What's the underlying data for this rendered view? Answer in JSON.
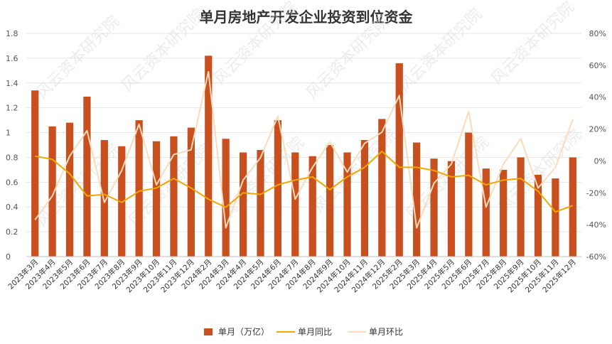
{
  "chart_data": {
    "type": "bar+line",
    "title": "单月房地产开发企业投资到位资金",
    "categories": [
      "2023年3月",
      "2023年4月",
      "2023年5月",
      "2023年6月",
      "2023年7月",
      "2023年8月",
      "2023年9月",
      "2023年10月",
      "2023年11月",
      "2023年12月",
      "2024年2月",
      "2024年3月",
      "2024年4月",
      "2024年5月",
      "2024年6月",
      "2024年7月",
      "2024年8月",
      "2024年9月",
      "2024年10月",
      "2024年11月",
      "2024年12月",
      "2025年2月",
      "2025年3月",
      "2025年4月",
      "2025年5月",
      "2025年6月",
      "2025年7月",
      "2025年8月",
      "2025年9月",
      "2025年10月",
      "2025年11月",
      "2025年12月"
    ],
    "series": [
      {
        "name": "单月（万亿）",
        "type": "bar",
        "axis": "left",
        "color": "#c8501e",
        "values": [
          1.34,
          1.05,
          1.08,
          1.29,
          0.94,
          0.89,
          1.1,
          0.93,
          0.97,
          1.04,
          1.62,
          0.95,
          0.84,
          0.86,
          1.1,
          0.84,
          0.81,
          0.9,
          0.84,
          0.94,
          1.11,
          1.56,
          0.92,
          0.79,
          0.77,
          1.0,
          0.71,
          0.7,
          0.8,
          0.66,
          0.63,
          0.8
        ]
      },
      {
        "name": "单月同比",
        "type": "line",
        "axis": "right",
        "color": "#f0a800",
        "values": [
          3,
          1,
          -8,
          -22,
          -21,
          -26,
          -19,
          -17,
          -11,
          -17,
          -24,
          -29,
          -20,
          -21,
          -15,
          -12,
          -10,
          -18,
          -10,
          -4,
          6,
          -4,
          -4,
          -6,
          -10,
          -9,
          -15,
          -12,
          -11,
          -19,
          -32,
          -28
        ]
      },
      {
        "name": "单月环比",
        "type": "line",
        "axis": "right",
        "color": "#f8dcbc",
        "values": [
          -37,
          -22,
          3,
          19,
          -26,
          -6,
          23,
          -15,
          4,
          7,
          56,
          -42,
          -12,
          2,
          28,
          -24,
          -4,
          12,
          -7,
          11,
          18,
          41,
          -42,
          -14,
          -2,
          31,
          -29,
          -2,
          14,
          -17,
          -4,
          26
        ]
      }
    ],
    "ylim_left": [
      0,
      1.8
    ],
    "yticks_left": [
      "0",
      "0.2",
      "0.4",
      "0.6",
      "0.8",
      "1",
      "1.2",
      "1.4",
      "1.6",
      "1.8"
    ],
    "ylim_right": [
      -60,
      80
    ],
    "yticks_right": [
      "-60%",
      "-40%",
      "-20%",
      "0%",
      "20%",
      "40%",
      "60%",
      "80%"
    ],
    "legend_position": "bottom",
    "grid": true
  },
  "watermark": "风云资本研究院"
}
